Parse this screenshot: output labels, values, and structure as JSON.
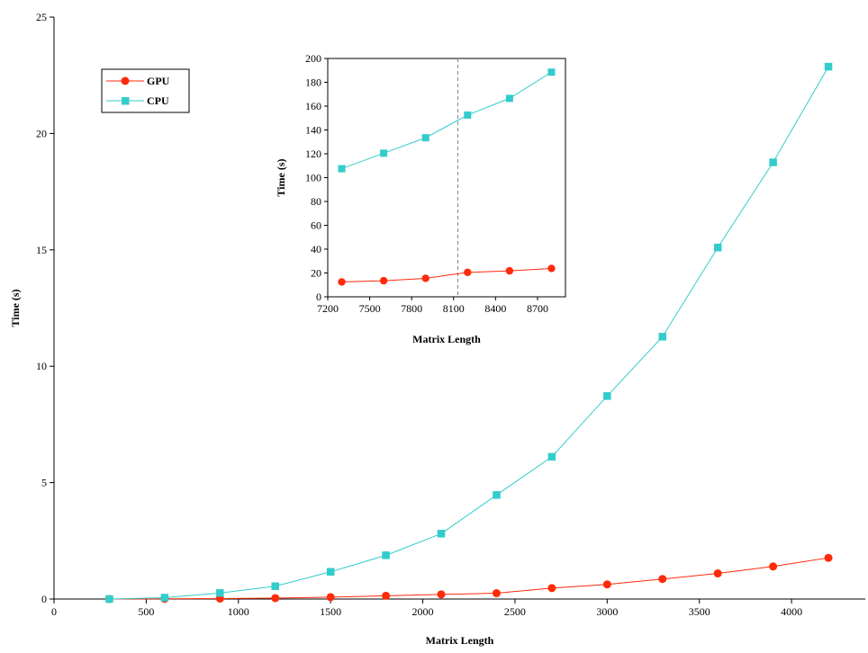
{
  "chart_data": [
    {
      "type": "line",
      "title": "",
      "xlabel": "Matrix Length",
      "ylabel": "Time (s)",
      "xlim": [
        0,
        4400
      ],
      "ylim": [
        0,
        25
      ],
      "xticks": [
        0,
        500,
        1000,
        1500,
        2000,
        2500,
        3000,
        3500,
        4000
      ],
      "yticks": [
        0,
        5,
        10,
        15,
        20,
        25
      ],
      "x": [
        300,
        600,
        900,
        1200,
        1500,
        1800,
        2100,
        2400,
        2700,
        3000,
        3300,
        3600,
        3900,
        4200
      ],
      "series": [
        {
          "name": "GPU",
          "color": "#ff2a0a",
          "marker": "circle",
          "values": [
            0.0,
            0.01,
            0.02,
            0.04,
            0.08,
            0.14,
            0.2,
            0.25,
            0.47,
            0.63,
            0.86,
            1.1,
            1.4,
            1.77
          ]
        },
        {
          "name": "CPU",
          "color": "#33cccc",
          "marker": "square",
          "values": [
            0.0,
            0.06,
            0.26,
            0.55,
            1.17,
            1.88,
            2.81,
            4.47,
            6.11,
            8.72,
            11.27,
            15.1,
            18.76,
            22.87
          ]
        }
      ],
      "legend": {
        "position": "top-left",
        "entries": [
          "GPU",
          "CPU"
        ]
      },
      "grid": false
    },
    {
      "type": "line",
      "title": "",
      "xlabel": "Matrix Length",
      "ylabel": "Time (s)",
      "xlim": [
        7200,
        8900
      ],
      "ylim": [
        0,
        200
      ],
      "xticks": [
        7200,
        7500,
        7800,
        8100,
        8400,
        8700
      ],
      "yticks": [
        0,
        20,
        40,
        60,
        80,
        100,
        120,
        140,
        160,
        180,
        200
      ],
      "x": [
        7300,
        7600,
        7900,
        8200,
        8500,
        8800
      ],
      "reference_line": {
        "x": 8130,
        "style": "dashed"
      },
      "series": [
        {
          "name": "GPU",
          "color": "#ff2a0a",
          "marker": "circle",
          "values": [
            12.5,
            13.5,
            15.5,
            20.5,
            21.8,
            23.8
          ]
        },
        {
          "name": "CPU",
          "color": "#33cccc",
          "marker": "square",
          "values": [
            107.5,
            120.5,
            133.5,
            152.5,
            166.5,
            188.5
          ]
        }
      ],
      "grid": false
    }
  ]
}
